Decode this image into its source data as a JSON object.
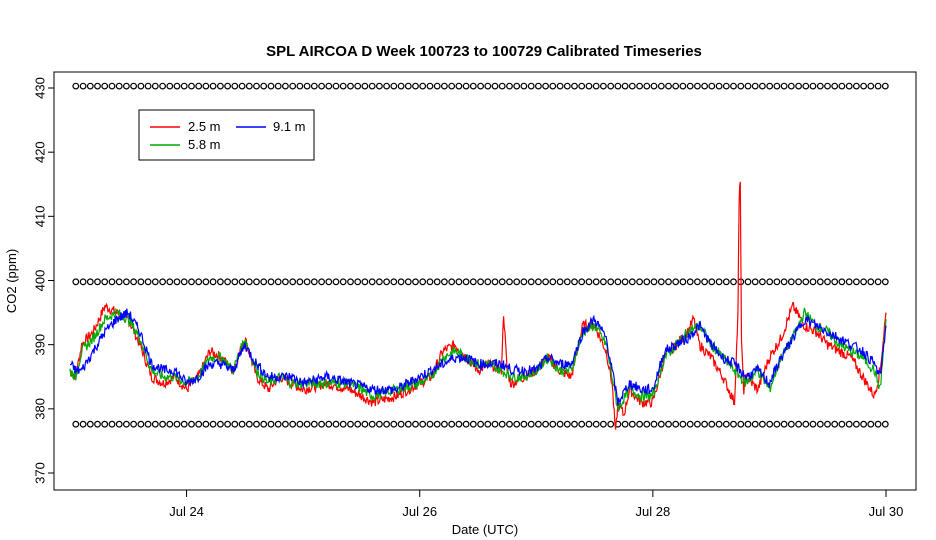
{
  "chart_data": {
    "type": "line",
    "title": "SPL AIRCOA D  Week 100723 to 100729  Calibrated Timeseries",
    "xlabel": "Date (UTC)",
    "ylabel": "CO2 (ppm)",
    "x_ticks": [
      "Jul 24",
      "Jul 26",
      "Jul 28",
      "Jul 30"
    ],
    "y_ticks": [
      370,
      380,
      390,
      400,
      410,
      420,
      430
    ],
    "x_range_days": [
      "2010-07-23T00:00",
      "2010-07-30T00:00"
    ],
    "ylim": [
      368,
      432
    ],
    "grid": false,
    "legend_position": "top-left",
    "series": [
      {
        "name": "2.5 m",
        "color": "#ff0000",
        "x_days": [
          23.0,
          23.05,
          23.1,
          23.2,
          23.3,
          23.4,
          23.5,
          23.6,
          23.7,
          23.8,
          23.9,
          24.0,
          24.1,
          24.2,
          24.3,
          24.4,
          24.5,
          24.6,
          24.7,
          24.8,
          24.9,
          25.0,
          25.2,
          25.4,
          25.6,
          25.8,
          26.0,
          26.1,
          26.2,
          26.3,
          26.4,
          26.5,
          26.6,
          26.7,
          26.72,
          26.75,
          26.78,
          26.8,
          26.9,
          27.0,
          27.1,
          27.2,
          27.3,
          27.4,
          27.5,
          27.6,
          27.65,
          27.68,
          27.7,
          27.75,
          27.8,
          27.9,
          28.0,
          28.1,
          28.2,
          28.3,
          28.35,
          28.4,
          28.5,
          28.6,
          28.7,
          28.73,
          28.74,
          28.75,
          28.76,
          28.78,
          28.8,
          28.9,
          29.0,
          29.1,
          29.2,
          29.3,
          29.4,
          29.5,
          29.6,
          29.7,
          29.8,
          29.9,
          29.95,
          30.0
        ],
        "values": [
          386,
          385,
          390,
          392,
          396,
          395,
          394,
          390,
          385,
          384,
          385,
          383,
          385,
          389,
          388,
          386,
          391,
          385,
          383,
          385,
          384,
          383,
          384,
          383,
          381,
          382,
          384,
          385,
          389,
          390,
          388,
          386,
          387,
          386,
          395,
          386,
          384,
          384,
          385,
          386,
          388,
          386,
          385,
          393,
          393,
          389,
          384,
          376,
          381,
          379,
          383,
          381,
          381,
          388,
          390,
          392,
          394,
          390,
          388,
          385,
          381,
          395,
          412,
          416,
          390,
          383,
          385,
          383,
          388,
          391,
          396,
          393,
          392,
          390,
          389,
          388,
          385,
          382,
          386,
          395
        ]
      },
      {
        "name": "5.8 m",
        "color": "#00aa00",
        "x_days": [
          23.0,
          23.05,
          23.1,
          23.2,
          23.3,
          23.4,
          23.5,
          23.6,
          23.7,
          23.8,
          23.9,
          24.0,
          24.1,
          24.2,
          24.3,
          24.4,
          24.5,
          24.6,
          24.7,
          24.8,
          24.9,
          25.0,
          25.2,
          25.4,
          25.6,
          25.8,
          26.0,
          26.1,
          26.2,
          26.3,
          26.4,
          26.5,
          26.6,
          26.7,
          26.8,
          26.9,
          27.0,
          27.1,
          27.2,
          27.3,
          27.4,
          27.5,
          27.6,
          27.65,
          27.7,
          27.8,
          27.9,
          28.0,
          28.1,
          28.2,
          28.3,
          28.4,
          28.5,
          28.6,
          28.7,
          28.8,
          28.9,
          29.0,
          29.1,
          29.2,
          29.3,
          29.4,
          29.5,
          29.6,
          29.7,
          29.8,
          29.9,
          29.95,
          30.0
        ],
        "values": [
          386,
          385,
          389,
          391,
          394,
          395,
          394,
          391,
          386,
          385,
          385,
          384,
          385,
          388,
          388,
          386,
          391,
          386,
          384,
          385,
          384,
          384,
          384,
          384,
          382,
          383,
          384,
          385,
          388,
          389,
          388,
          387,
          387,
          386,
          385,
          385,
          386,
          388,
          386,
          386,
          392,
          393,
          390,
          385,
          380,
          383,
          382,
          382,
          388,
          390,
          392,
          393,
          390,
          388,
          386,
          384,
          386,
          383,
          388,
          391,
          395,
          393,
          392,
          390,
          389,
          388,
          386,
          383,
          394
        ]
      },
      {
        "name": "9.1 m",
        "color": "#0000ff",
        "x_days": [
          23.0,
          23.05,
          23.1,
          23.2,
          23.3,
          23.4,
          23.5,
          23.6,
          23.7,
          23.8,
          23.9,
          24.0,
          24.1,
          24.2,
          24.3,
          24.4,
          24.5,
          24.6,
          24.7,
          24.8,
          24.9,
          25.0,
          25.2,
          25.4,
          25.6,
          25.8,
          26.0,
          26.1,
          26.2,
          26.3,
          26.4,
          26.5,
          26.6,
          26.7,
          26.8,
          26.9,
          27.0,
          27.1,
          27.2,
          27.3,
          27.4,
          27.5,
          27.6,
          27.65,
          27.7,
          27.8,
          27.9,
          28.0,
          28.1,
          28.2,
          28.3,
          28.4,
          28.5,
          28.6,
          28.7,
          28.8,
          28.9,
          29.0,
          29.1,
          29.2,
          29.3,
          29.4,
          29.5,
          29.6,
          29.7,
          29.8,
          29.9,
          29.95,
          30.0
        ],
        "values": [
          387,
          386,
          386,
          389,
          392,
          394,
          395,
          392,
          387,
          386,
          386,
          384,
          385,
          387,
          387,
          386,
          390,
          387,
          385,
          385,
          385,
          384,
          385,
          384,
          383,
          383,
          385,
          386,
          387,
          388,
          388,
          387,
          387,
          387,
          386,
          386,
          386,
          388,
          387,
          387,
          392,
          394,
          391,
          386,
          381,
          384,
          383,
          383,
          389,
          390,
          391,
          393,
          390,
          388,
          387,
          385,
          386,
          384,
          388,
          391,
          394,
          393,
          392,
          391,
          390,
          389,
          387,
          385,
          393
        ]
      }
    ],
    "calibration_markers": [
      {
        "value": 430.3,
        "color": "#000000"
      },
      {
        "value": 399.8,
        "color": "#000000"
      },
      {
        "value": 377.6,
        "color": "#000000"
      }
    ]
  }
}
